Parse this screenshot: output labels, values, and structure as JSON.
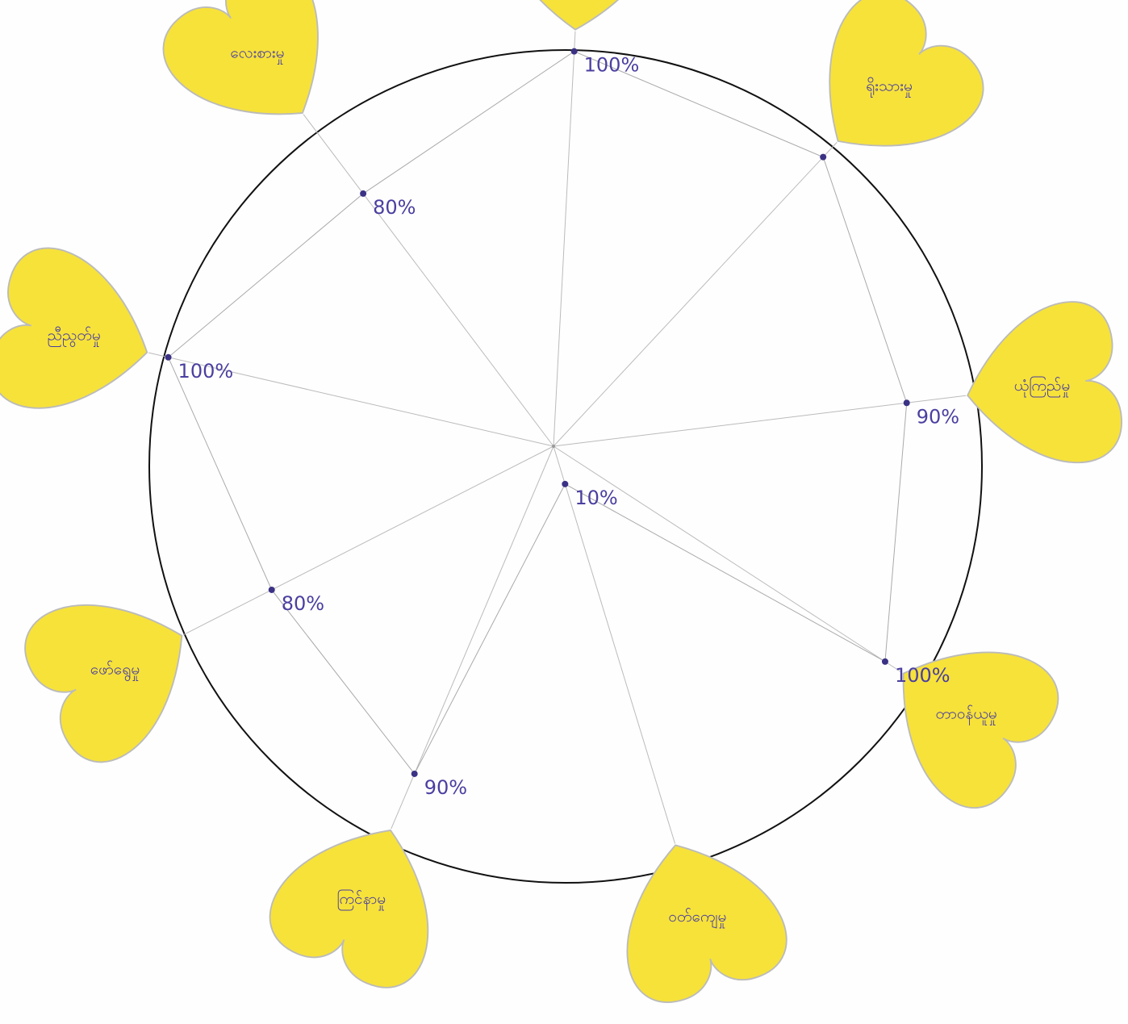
{
  "chart_data": {
    "type": "radar",
    "categories": [
      null,
      "ရိုးသားမှု",
      "ယုံကြည်မှု",
      "တာဝန်ယူမှု",
      "ဝတ်ကျေမှု",
      "ကြင်နာမှု",
      "ဖော်ရွေမှု",
      "ညီညွတ်မှု",
      "လေးစားမှု"
    ],
    "values": [
      100,
      100,
      90,
      100,
      10,
      90,
      80,
      100,
      80
    ],
    "value_labels": [
      "100%",
      null,
      "90%",
      "100%",
      "10%",
      "90%",
      "80%",
      "100%",
      "80%"
    ],
    "rlim": [
      0,
      100
    ],
    "color": "#3b3285",
    "heart_color": "#f7e23a"
  }
}
